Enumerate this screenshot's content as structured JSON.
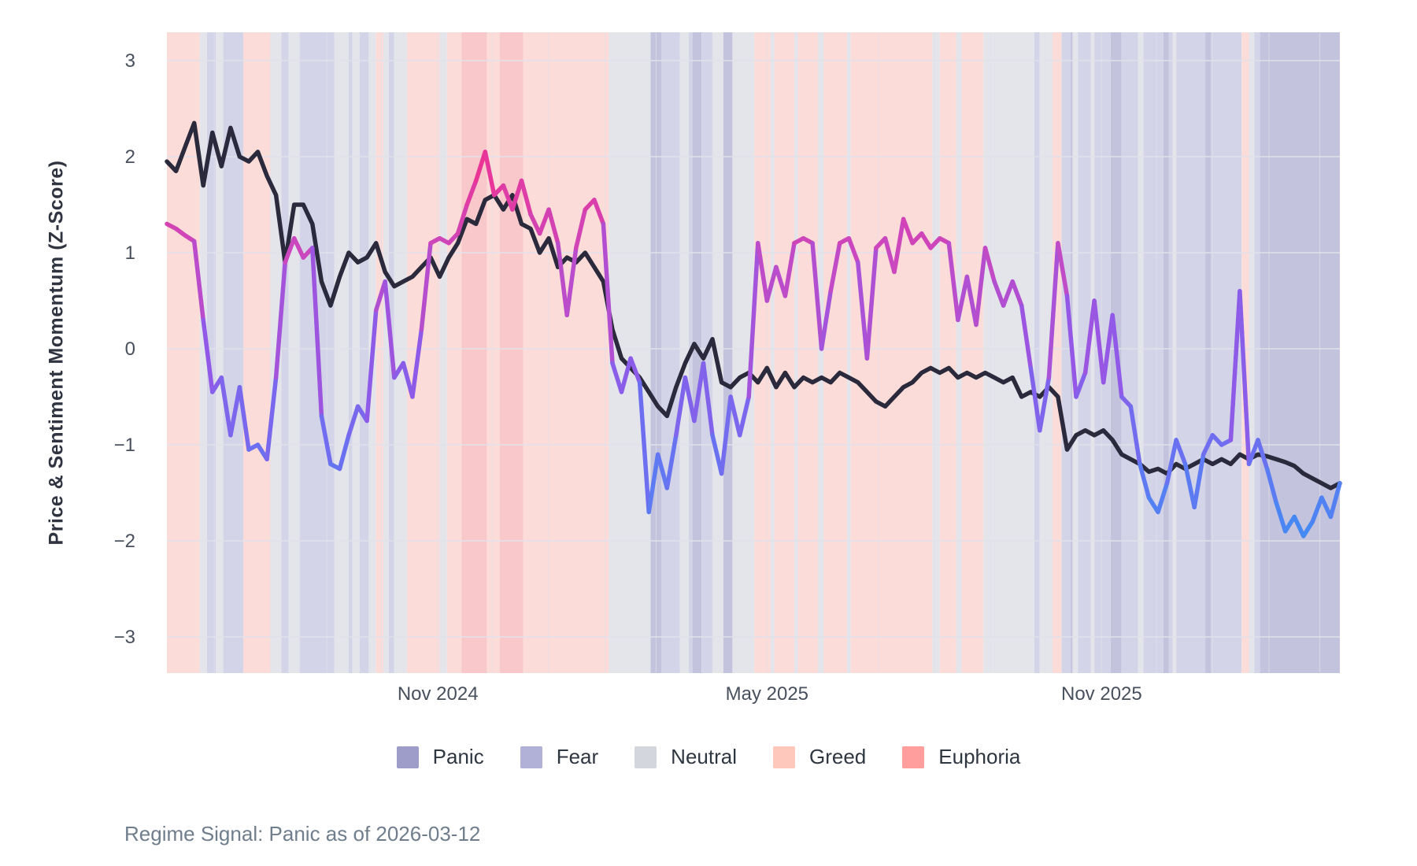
{
  "y_axis": {
    "label": "Price & Sentiment Momentum (Z-Score)"
  },
  "caption": "Regime Signal: Panic as of 2026-03-12",
  "legend": {
    "items": [
      {
        "label": "Panic",
        "color": "#9e9dca"
      },
      {
        "label": "Fear",
        "color": "#b1b0d6"
      },
      {
        "label": "Neutral",
        "color": "#d3d6dc"
      },
      {
        "label": "Greed",
        "color": "#ffc8bd"
      },
      {
        "label": "Euphoria",
        "color": "#ff9e9d"
      }
    ]
  },
  "chart_data": {
    "type": "line",
    "title": "",
    "ylabel": "Price & Sentiment Momentum (Z-Score)",
    "start_date": "2024-06-05",
    "end_date": "2026-03-12",
    "point_interval_days": 5,
    "xlim_days": [
      0,
      645
    ],
    "ylim": [
      -3.38,
      3.3
    ],
    "grid": {
      "h_color": "#e2e2ea",
      "v_color": "#e0e0e9"
    },
    "y_ticks": [
      {
        "label": "3",
        "value": 3
      },
      {
        "label": "2",
        "value": 2
      },
      {
        "label": "1",
        "value": 1
      },
      {
        "label": "0",
        "value": 0
      },
      {
        "label": "−1",
        "value": -1
      },
      {
        "label": "−2",
        "value": -2
      },
      {
        "label": "−3",
        "value": -3
      }
    ],
    "x_ticks": [
      {
        "label": "Nov 2024",
        "day": 149
      },
      {
        "label": "May 2025",
        "day": 330
      },
      {
        "label": "Nov 2025",
        "day": 514
      }
    ],
    "month_grid_days": [
      26,
      57,
      88,
      118,
      149,
      179,
      210,
      241,
      269,
      300,
      330,
      361,
      391,
      422,
      453,
      483,
      514,
      544,
      575,
      606,
      634
    ],
    "series": [
      {
        "name": "price_momentum",
        "color": "#2a2a3c",
        "values": [
          1.95,
          1.85,
          2.1,
          2.35,
          1.7,
          2.25,
          1.9,
          2.3,
          2.0,
          1.95,
          2.05,
          1.8,
          1.6,
          0.9,
          1.5,
          1.5,
          1.3,
          0.7,
          0.45,
          0.75,
          1.0,
          0.9,
          0.95,
          1.1,
          0.8,
          0.65,
          0.7,
          0.75,
          0.85,
          0.95,
          0.75,
          0.95,
          1.1,
          1.35,
          1.3,
          1.55,
          1.6,
          1.45,
          1.6,
          1.3,
          1.25,
          1.0,
          1.15,
          0.85,
          0.95,
          0.9,
          1.0,
          0.85,
          0.7,
          0.2,
          -0.1,
          -0.2,
          -0.3,
          -0.45,
          -0.6,
          -0.7,
          -0.4,
          -0.15,
          0.05,
          -0.1,
          0.1,
          -0.35,
          -0.4,
          -0.3,
          -0.25,
          -0.35,
          -0.2,
          -0.4,
          -0.25,
          -0.4,
          -0.3,
          -0.35,
          -0.3,
          -0.35,
          -0.25,
          -0.3,
          -0.35,
          -0.45,
          -0.55,
          -0.6,
          -0.5,
          -0.4,
          -0.35,
          -0.25,
          -0.2,
          -0.25,
          -0.2,
          -0.3,
          -0.25,
          -0.3,
          -0.25,
          -0.3,
          -0.35,
          -0.3,
          -0.5,
          -0.45,
          -0.5,
          -0.4,
          -0.5,
          -1.05,
          -0.9,
          -0.85,
          -0.9,
          -0.85,
          -0.95,
          -1.1,
          -1.15,
          -1.2,
          -1.28,
          -1.25,
          -1.3,
          -1.2,
          -1.25,
          -1.2,
          -1.15,
          -1.2,
          -1.15,
          -1.2,
          -1.1,
          -1.15,
          -1.1,
          -1.12,
          -1.15,
          -1.18,
          -1.22,
          -1.3,
          -1.35,
          -1.4,
          -1.45,
          -1.4
        ]
      },
      {
        "name": "sentiment_momentum",
        "colormap": {
          "stops": [
            -2,
            -1,
            0,
            1,
            2
          ],
          "colors": [
            "#3f8df4",
            "#6f6ef0",
            "#9457e6",
            "#c948c0",
            "#ee3392"
          ]
        },
        "values": [
          1.3,
          1.25,
          1.18,
          1.12,
          0.3,
          -0.45,
          -0.3,
          -0.9,
          -0.4,
          -1.05,
          -1.0,
          -1.15,
          -0.3,
          0.9,
          1.15,
          0.95,
          1.05,
          -0.7,
          -1.2,
          -1.25,
          -0.9,
          -0.6,
          -0.75,
          0.4,
          0.7,
          -0.3,
          -0.15,
          -0.5,
          0.2,
          1.1,
          1.15,
          1.1,
          1.2,
          1.5,
          1.75,
          2.05,
          1.6,
          1.7,
          1.45,
          1.75,
          1.4,
          1.2,
          1.45,
          1.1,
          0.35,
          1.05,
          1.45,
          1.55,
          1.3,
          -0.15,
          -0.45,
          -0.1,
          -0.35,
          -1.7,
          -1.1,
          -1.45,
          -0.9,
          -0.3,
          -0.75,
          -0.15,
          -0.9,
          -1.3,
          -0.5,
          -0.9,
          -0.5,
          1.1,
          0.5,
          0.85,
          0.55,
          1.1,
          1.15,
          1.1,
          0.0,
          0.6,
          1.1,
          1.15,
          0.9,
          -0.1,
          1.05,
          1.15,
          0.8,
          1.35,
          1.1,
          1.2,
          1.05,
          1.15,
          1.1,
          0.3,
          0.75,
          0.25,
          1.05,
          0.7,
          0.45,
          0.7,
          0.45,
          -0.2,
          -0.85,
          -0.3,
          1.1,
          0.55,
          -0.5,
          -0.25,
          0.5,
          -0.35,
          0.35,
          -0.5,
          -0.6,
          -1.2,
          -1.55,
          -1.7,
          -1.4,
          -0.95,
          -1.2,
          -1.65,
          -1.1,
          -0.9,
          -1.0,
          -0.95,
          0.6,
          -1.2,
          -0.95,
          -1.25,
          -1.6,
          -1.9,
          -1.75,
          -1.95,
          -1.8,
          -1.55,
          -1.75,
          -1.4
        ]
      }
    ],
    "band_colors": {
      "Panic": "#c4c3de",
      "Fear": "#d4d4e8",
      "Neutral": "#e4e5eb",
      "Greed": "#fcdcd8",
      "Euphoria": "#f9c8cb"
    },
    "regime_bands": [
      [
        0,
        18,
        "Greed"
      ],
      [
        18,
        22,
        "Neutral"
      ],
      [
        22,
        27,
        "Fear"
      ],
      [
        27,
        31,
        "Neutral"
      ],
      [
        31,
        42,
        "Fear"
      ],
      [
        42,
        57,
        "Greed"
      ],
      [
        57,
        63,
        "Neutral"
      ],
      [
        63,
        67,
        "Fear"
      ],
      [
        67,
        73,
        "Neutral"
      ],
      [
        73,
        92,
        "Fear"
      ],
      [
        92,
        100,
        "Neutral"
      ],
      [
        100,
        102,
        "Fear"
      ],
      [
        102,
        106,
        "Neutral"
      ],
      [
        106,
        111,
        "Fear"
      ],
      [
        111,
        115,
        "Neutral"
      ],
      [
        115,
        119,
        "Greed"
      ],
      [
        119,
        122,
        "Neutral"
      ],
      [
        122,
        125,
        "Fear"
      ],
      [
        125,
        132,
        "Neutral"
      ],
      [
        132,
        150,
        "Greed"
      ],
      [
        150,
        154,
        "Neutral"
      ],
      [
        154,
        162,
        "Greed"
      ],
      [
        162,
        176,
        "Euphoria"
      ],
      [
        176,
        183,
        "Greed"
      ],
      [
        183,
        196,
        "Euphoria"
      ],
      [
        196,
        243,
        "Greed"
      ],
      [
        243,
        266,
        "Neutral"
      ],
      [
        266,
        272,
        "Panic"
      ],
      [
        272,
        282,
        "Fear"
      ],
      [
        282,
        287,
        "Neutral"
      ],
      [
        287,
        289,
        "Fear"
      ],
      [
        289,
        294,
        "Panic"
      ],
      [
        294,
        300,
        "Fear"
      ],
      [
        300,
        306,
        "Neutral"
      ],
      [
        306,
        311,
        "Panic"
      ],
      [
        311,
        323,
        "Neutral"
      ],
      [
        323,
        332,
        "Greed"
      ],
      [
        332,
        334,
        "Neutral"
      ],
      [
        334,
        345,
        "Greed"
      ],
      [
        345,
        347,
        "Neutral"
      ],
      [
        347,
        358,
        "Greed"
      ],
      [
        358,
        361,
        "Neutral"
      ],
      [
        361,
        374,
        "Greed"
      ],
      [
        374,
        376,
        "Neutral"
      ],
      [
        376,
        421,
        "Greed"
      ],
      [
        421,
        425,
        "Neutral"
      ],
      [
        425,
        434,
        "Greed"
      ],
      [
        434,
        437,
        "Neutral"
      ],
      [
        437,
        449,
        "Greed"
      ],
      [
        449,
        477,
        "Neutral"
      ],
      [
        477,
        480,
        "Fear"
      ],
      [
        480,
        487,
        "Neutral"
      ],
      [
        487,
        492,
        "Greed"
      ],
      [
        492,
        497,
        "Fear"
      ],
      [
        497,
        498,
        "Panic"
      ],
      [
        498,
        501,
        "Neutral"
      ],
      [
        501,
        508,
        "Fear"
      ],
      [
        508,
        510,
        "Neutral"
      ],
      [
        510,
        519,
        "Fear"
      ],
      [
        519,
        525,
        "Panic"
      ],
      [
        525,
        534,
        "Fear"
      ],
      [
        534,
        537,
        "Neutral"
      ],
      [
        537,
        548,
        "Fear"
      ],
      [
        548,
        551,
        "Panic"
      ],
      [
        551,
        553,
        "Fear"
      ],
      [
        553,
        555,
        "Neutral"
      ],
      [
        555,
        571,
        "Fear"
      ],
      [
        571,
        574,
        "Panic"
      ],
      [
        574,
        591,
        "Fear"
      ],
      [
        591,
        595,
        "Greed"
      ],
      [
        595,
        598,
        "Neutral"
      ],
      [
        598,
        601,
        "Fear"
      ],
      [
        601,
        645,
        "Panic"
      ]
    ]
  }
}
